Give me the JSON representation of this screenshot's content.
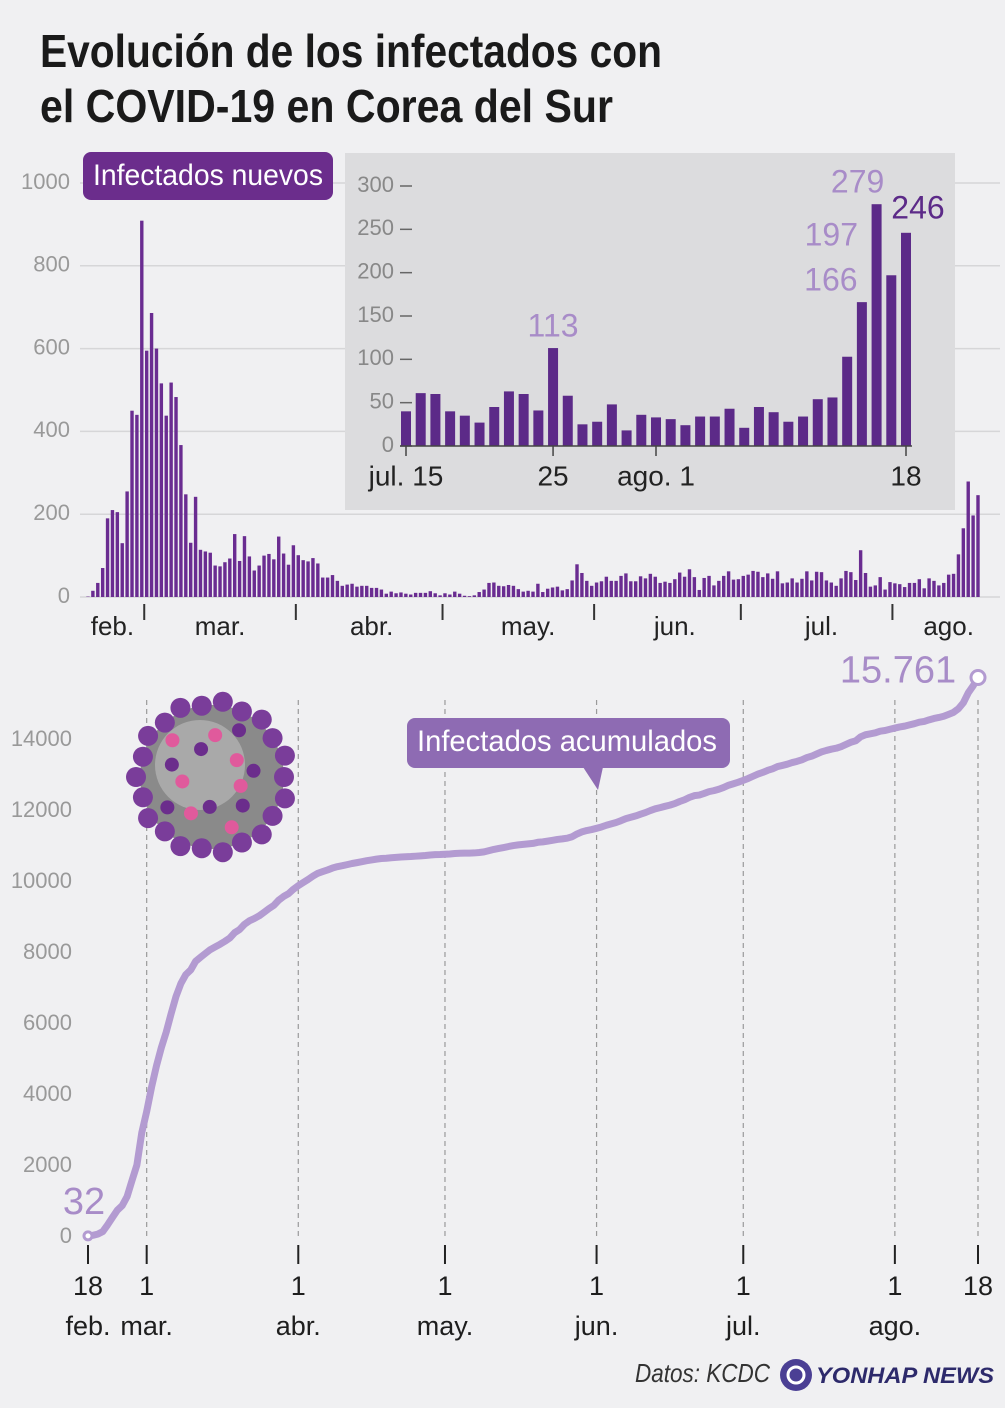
{
  "title": [
    "Evolución de los infectados con",
    "el COVID-19 en Corea del Sur"
  ],
  "chart_data": [
    {
      "type": "bar",
      "title": "Infectados nuevos",
      "color": "#6a2c91",
      "grid": true,
      "ylim": [
        0,
        1000
      ],
      "yticks": [
        0,
        200,
        400,
        600,
        800,
        1000
      ],
      "xticks": [
        12,
        43,
        73,
        104,
        134,
        165
      ],
      "categories": [
        null,
        null,
        null,
        null,
        null,
        "feb.",
        null,
        null,
        null,
        null,
        null,
        null,
        null,
        null,
        null,
        null,
        null,
        null,
        null,
        null,
        null,
        null,
        null,
        null,
        null,
        null,
        null,
        "mar.",
        null,
        null,
        null,
        null,
        null,
        null,
        null,
        null,
        null,
        null,
        null,
        null,
        null,
        null,
        null,
        null,
        null,
        null,
        null,
        null,
        null,
        null,
        null,
        null,
        null,
        null,
        null,
        null,
        null,
        null,
        "abr.",
        null,
        null,
        null,
        null,
        null,
        null,
        null,
        null,
        null,
        null,
        null,
        null,
        null,
        null,
        null,
        null,
        null,
        null,
        null,
        null,
        null,
        null,
        null,
        null,
        null,
        null,
        null,
        null,
        null,
        null,
        null,
        "may.",
        null,
        null,
        null,
        null,
        null,
        null,
        null,
        null,
        null,
        null,
        null,
        null,
        null,
        null,
        null,
        null,
        null,
        null,
        null,
        null,
        null,
        null,
        null,
        null,
        null,
        null,
        null,
        null,
        null,
        "jun.",
        null,
        null,
        null,
        null,
        null,
        null,
        null,
        null,
        null,
        null,
        null,
        null,
        null,
        null,
        null,
        null,
        null,
        null,
        null,
        null,
        null,
        null,
        null,
        null,
        null,
        null,
        null,
        null,
        null,
        "jul.",
        null,
        null,
        null,
        null,
        null,
        null,
        null,
        null,
        null,
        null,
        null,
        null,
        null,
        null,
        null,
        null,
        null,
        null,
        null,
        null,
        null,
        null,
        null,
        null,
        null,
        "ago.",
        null,
        null,
        null,
        null,
        null,
        null
      ],
      "values": [
        1,
        15,
        34,
        70,
        190,
        210,
        205,
        130,
        255,
        450,
        440,
        909,
        595,
        686,
        600,
        516,
        438,
        518,
        483,
        367,
        248,
        131,
        242,
        114,
        110,
        107,
        76,
        74,
        84,
        93,
        152,
        87,
        147,
        98,
        64,
        76,
        100,
        104,
        91,
        146,
        105,
        78,
        125,
        101,
        89,
        86,
        94,
        81,
        47,
        47,
        53,
        39,
        27,
        30,
        32,
        25,
        27,
        27,
        22,
        22,
        18,
        8,
        13,
        9,
        11,
        8,
        6,
        10,
        10,
        10,
        14,
        9,
        4,
        9,
        6,
        13,
        8,
        3,
        2,
        4,
        12,
        18,
        34,
        35,
        27,
        26,
        29,
        27,
        19,
        13,
        15,
        13,
        32,
        12,
        20,
        23,
        25,
        16,
        19,
        40,
        79,
        58,
        39,
        27,
        35,
        38,
        49,
        39,
        39,
        51,
        57,
        38,
        38,
        50,
        45,
        56,
        49,
        34,
        37,
        34,
        43,
        59,
        49,
        67,
        48,
        17,
        46,
        51,
        28,
        39,
        51,
        62,
        42,
        43,
        51,
        54,
        63,
        61,
        48,
        57,
        44,
        62,
        33,
        35,
        45,
        35,
        44,
        62,
        40,
        61,
        60,
        40,
        35,
        27,
        45,
        63,
        60,
        41,
        113,
        58,
        25,
        28,
        48,
        18,
        36,
        33,
        31,
        24,
        34,
        34,
        43,
        21,
        45,
        39,
        28,
        34,
        54,
        56,
        103,
        166,
        279,
        197,
        246
      ]
    },
    {
      "type": "bar",
      "color": "#5c2a88",
      "grid": false,
      "ylim": [
        0,
        300
      ],
      "yticks": [
        0,
        50,
        100,
        150,
        200,
        250,
        300
      ],
      "categories": [
        "jul. 15",
        null,
        null,
        null,
        null,
        null,
        null,
        null,
        null,
        null,
        "25",
        null,
        null,
        null,
        null,
        null,
        null,
        "ago. 1",
        null,
        null,
        null,
        null,
        null,
        null,
        null,
        null,
        null,
        null,
        null,
        null,
        null,
        null,
        null,
        null,
        "18"
      ],
      "values": [
        40,
        61,
        60,
        40,
        35,
        27,
        45,
        63,
        60,
        41,
        113,
        58,
        25,
        28,
        48,
        18,
        36,
        33,
        31,
        24,
        34,
        34,
        43,
        21,
        45,
        39,
        28,
        34,
        54,
        56,
        103,
        166,
        279,
        197,
        246
      ],
      "value_labels": [
        null,
        null,
        null,
        null,
        null,
        null,
        null,
        null,
        null,
        null,
        113,
        null,
        null,
        null,
        null,
        null,
        null,
        null,
        null,
        null,
        null,
        null,
        null,
        null,
        null,
        null,
        null,
        null,
        null,
        null,
        null,
        166,
        279,
        197,
        246
      ]
    },
    {
      "type": "line",
      "title": "Infectados acumulados",
      "color": "#b39bd1",
      "grid": true,
      "ylim": [
        0,
        16000
      ],
      "yticks": [
        0,
        2000,
        4000,
        6000,
        8000,
        10000,
        12000,
        14000
      ],
      "categories": [
        "18 feb.",
        null,
        null,
        null,
        null,
        null,
        null,
        null,
        null,
        null,
        null,
        null,
        "1 mar.",
        null,
        null,
        null,
        null,
        null,
        null,
        null,
        null,
        null,
        null,
        null,
        null,
        null,
        null,
        null,
        null,
        null,
        null,
        null,
        null,
        null,
        null,
        null,
        null,
        null,
        null,
        null,
        null,
        null,
        null,
        "1 abr.",
        null,
        null,
        null,
        null,
        null,
        null,
        null,
        null,
        null,
        null,
        null,
        null,
        null,
        null,
        null,
        null,
        null,
        null,
        null,
        null,
        null,
        null,
        null,
        null,
        null,
        null,
        null,
        null,
        null,
        "1 may.",
        null,
        null,
        null,
        null,
        null,
        null,
        null,
        null,
        null,
        null,
        null,
        null,
        null,
        null,
        null,
        null,
        null,
        null,
        null,
        null,
        null,
        null,
        null,
        null,
        null,
        null,
        null,
        null,
        null,
        null,
        "1 jun.",
        null,
        null,
        null,
        null,
        null,
        null,
        null,
        null,
        null,
        null,
        null,
        null,
        null,
        null,
        null,
        null,
        null,
        null,
        null,
        null,
        null,
        null,
        null,
        null,
        null,
        null,
        null,
        null,
        null,
        "1 jul.",
        null,
        null,
        null,
        null,
        null,
        null,
        null,
        null,
        null,
        null,
        null,
        null,
        null,
        null,
        null,
        null,
        null,
        null,
        null,
        null,
        null,
        null,
        null,
        null,
        null,
        null,
        null,
        null,
        null,
        null,
        "1 ago.",
        null,
        null,
        null,
        null,
        null,
        null,
        null,
        null,
        null,
        null,
        null,
        null,
        null,
        null,
        null,
        null,
        "18"
      ],
      "values": [
        32,
        47,
        81,
        151,
        341,
        551,
        756,
        886,
        1141,
        1591,
        2031,
        2940,
        3535,
        4221,
        4821,
        5337,
        5775,
        6293,
        6776,
        7143,
        7391,
        7522,
        7764,
        7878,
        7988,
        8095,
        8171,
        8245,
        8329,
        8422,
        8574,
        8661,
        8808,
        8906,
        8970,
        9046,
        9146,
        9250,
        9341,
        9487,
        9592,
        9670,
        9795,
        9896,
        9985,
        10071,
        10165,
        10246,
        10293,
        10340,
        10393,
        10432,
        10459,
        10489,
        10521,
        10546,
        10573,
        10600,
        10622,
        10644,
        10662,
        10670,
        10683,
        10692,
        10703,
        10711,
        10717,
        10727,
        10737,
        10747,
        10761,
        10770,
        10774,
        10783,
        10789,
        10802,
        10810,
        10813,
        10815,
        10819,
        10831,
        10849,
        10883,
        10918,
        10945,
        10971,
        11000,
        11027,
        11046,
        11059,
        11074,
        11087,
        11119,
        11131,
        11151,
        11174,
        11199,
        11215,
        11234,
        11274,
        11353,
        11411,
        11450,
        11477,
        11512,
        11550,
        11599,
        11638,
        11677,
        11728,
        11785,
        11823,
        11861,
        11911,
        11956,
        12012,
        12061,
        12095,
        12132,
        12166,
        12209,
        12268,
        12317,
        12384,
        12432,
        12449,
        12495,
        12546,
        12574,
        12613,
        12664,
        12726,
        12768,
        12811,
        12862,
        12916,
        12979,
        13040,
        13088,
        13145,
        13189,
        13251,
        13284,
        13319,
        13364,
        13399,
        13443,
        13505,
        13545,
        13606,
        13666,
        13706,
        13741,
        13768,
        13813,
        13876,
        13936,
        13977,
        14090,
        14148,
        14173,
        14201,
        14249,
        14267,
        14303,
        14336,
        14367,
        14391,
        14425,
        14459,
        14502,
        14523,
        14568,
        14607,
        14635,
        14669,
        14723,
        14779,
        14882,
        15048,
        15327,
        15524,
        15761
      ],
      "value_labels": [
        "32",
        null,
        null,
        null,
        null,
        null,
        null,
        null,
        null,
        null,
        null,
        null,
        null,
        null,
        null,
        null,
        null,
        null,
        null,
        null,
        null,
        null,
        null,
        null,
        null,
        null,
        null,
        null,
        null,
        null,
        null,
        null,
        null,
        null,
        null,
        null,
        null,
        null,
        null,
        null,
        null,
        null,
        null,
        null,
        null,
        null,
        null,
        null,
        null,
        null,
        null,
        null,
        null,
        null,
        null,
        null,
        null,
        null,
        null,
        null,
        null,
        null,
        null,
        null,
        null,
        null,
        null,
        null,
        null,
        null,
        null,
        null,
        null,
        null,
        null,
        null,
        null,
        null,
        null,
        null,
        null,
        null,
        null,
        null,
        null,
        null,
        null,
        null,
        null,
        null,
        null,
        null,
        null,
        null,
        null,
        null,
        null,
        null,
        null,
        null,
        null,
        null,
        null,
        null,
        null,
        null,
        null,
        null,
        null,
        null,
        null,
        null,
        null,
        null,
        null,
        null,
        null,
        null,
        null,
        null,
        null,
        null,
        null,
        null,
        null,
        null,
        null,
        null,
        null,
        null,
        null,
        null,
        null,
        null,
        null,
        null,
        null,
        null,
        null,
        null,
        null,
        null,
        null,
        null,
        null,
        null,
        null,
        null,
        null,
        null,
        null,
        null,
        null,
        null,
        null,
        null,
        null,
        null,
        null,
        null,
        null,
        null,
        null,
        null,
        null,
        null,
        null,
        null,
        null,
        null,
        null,
        null,
        null,
        null,
        null,
        null,
        null,
        null,
        null,
        null,
        null,
        null,
        "15.761"
      ]
    }
  ],
  "footer": {
    "source": "Datos: KCDC",
    "logo": "YONHAP NEWS"
  }
}
